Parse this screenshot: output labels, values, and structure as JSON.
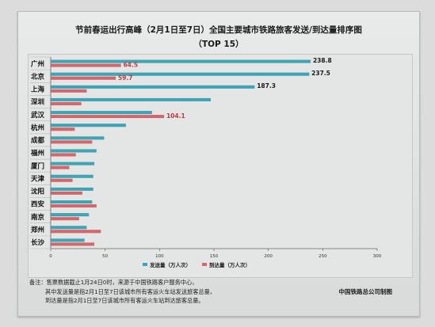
{
  "title_line1": "节前春运出行高峰（2月1日至7日）全国主要城市铁路旅客发送/到达量排序图",
  "title_line2": "（TOP 15）",
  "chart_data": {
    "type": "bar",
    "orientation": "horizontal",
    "categories": [
      "广州",
      "北京",
      "上海",
      "深圳",
      "武汉",
      "杭州",
      "成都",
      "福州",
      "厦门",
      "天津",
      "沈阳",
      "西安",
      "南京",
      "郑州",
      "长沙"
    ],
    "series": [
      {
        "name": "发送量(万人次)",
        "color": "#3aa6b8",
        "values": [
          238.8,
          237.5,
          187.3,
          147,
          93,
          69,
          49,
          42,
          40,
          39,
          39,
          38,
          35,
          33,
          31
        ]
      },
      {
        "name": "到达量(万人次)",
        "color": "#d9646a",
        "values": [
          64.5,
          59.7,
          33,
          28,
          104.1,
          22,
          38,
          23,
          17,
          20,
          29,
          42,
          26,
          46,
          40
        ]
      }
    ],
    "data_labels": [
      {
        "category": "广州",
        "series": 0,
        "text": "238.8"
      },
      {
        "category": "广州",
        "series": 1,
        "text": "64.5"
      },
      {
        "category": "北京",
        "series": 0,
        "text": "237.5"
      },
      {
        "category": "北京",
        "series": 1,
        "text": "59.7"
      },
      {
        "category": "上海",
        "series": 0,
        "text": "187.3"
      },
      {
        "category": "武汉",
        "series": 1,
        "text": "104.1"
      }
    ],
    "xlim": [
      0,
      300
    ],
    "xticks": [
      0,
      50,
      100,
      150,
      200,
      250,
      300
    ],
    "legend": [
      "发送量（万人次）",
      "到达量（万人次）"
    ],
    "legend_position": "bottom-center"
  },
  "notes": {
    "label": "备注：",
    "line1": "售票数据截止1月24日0时，来源于中国铁路客户服务中心，",
    "line2": "其中发送量是指2月1日至7日该城市所有客运火车站发送旅客总量，",
    "line3": "到达量是指2月1日至7日该城市所有客运火车站到达旅客总量。"
  },
  "source": "中国铁路总公司制图"
}
